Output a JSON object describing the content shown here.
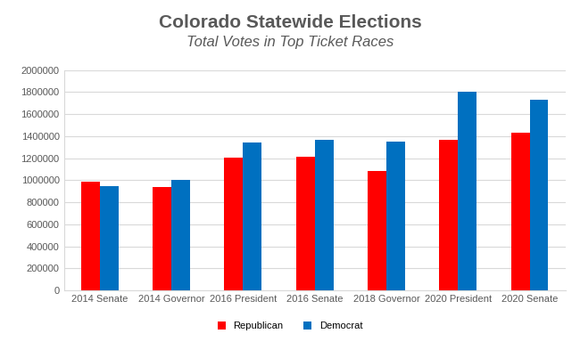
{
  "chart_data": {
    "type": "bar",
    "title": "Colorado Statewide Elections",
    "subtitle": "Total Votes in Top Ticket Races",
    "categories": [
      "2014 Senate",
      "2014 Governor",
      "2016 President",
      "2016 Senate",
      "2018 Governor",
      "2020 President",
      "2020 Senate"
    ],
    "series": [
      {
        "name": "Republican",
        "color": "#ff0000",
        "values": [
          983000,
          938000,
          1202000,
          1215000,
          1080000,
          1364000,
          1429000
        ]
      },
      {
        "name": "Democrat",
        "color": "#0070c0",
        "values": [
          945000,
          1006000,
          1339000,
          1370000,
          1348000,
          1805000,
          1731000
        ]
      }
    ],
    "ylim": [
      0,
      2000000
    ],
    "yticks": [
      0,
      200000,
      400000,
      600000,
      800000,
      1000000,
      1200000,
      1400000,
      1600000,
      1800000,
      2000000
    ],
    "grid": true,
    "legend": "lower center"
  }
}
